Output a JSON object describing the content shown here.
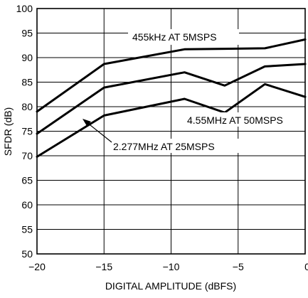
{
  "chart_data": {
    "type": "line",
    "xlabel": "DIGITAL AMPLITUDE (dBFS)",
    "ylabel": "SFDR (dB)",
    "xlim": [
      -20,
      0
    ],
    "ylim": [
      50,
      100
    ],
    "xticks": [
      "−20",
      "−15",
      "−10",
      "−5",
      "0"
    ],
    "yticks": [
      "50",
      "55",
      "60",
      "65",
      "70",
      "75",
      "80",
      "85",
      "90",
      "95",
      "100"
    ],
    "grid": true,
    "series": [
      {
        "name": "455kHz AT 5MSPS",
        "x": [
          -20,
          -15,
          -9,
          -6,
          -3,
          0
        ],
        "y": [
          79,
          88.7,
          91.7,
          91.8,
          91.9,
          93.7
        ]
      },
      {
        "name": "2.277MHz AT 25MSPS",
        "x": [
          -20,
          -15,
          -9,
          -6,
          -3,
          0
        ],
        "y": [
          74.5,
          83.9,
          87,
          84.3,
          88.2,
          88.7
        ]
      },
      {
        "name": "4.55MHz AT 50MSPS",
        "x": [
          -20,
          -15,
          -9,
          -6,
          -3,
          0
        ],
        "y": [
          69.8,
          78.2,
          81.6,
          78.8,
          84.6,
          82
        ]
      }
    ]
  }
}
